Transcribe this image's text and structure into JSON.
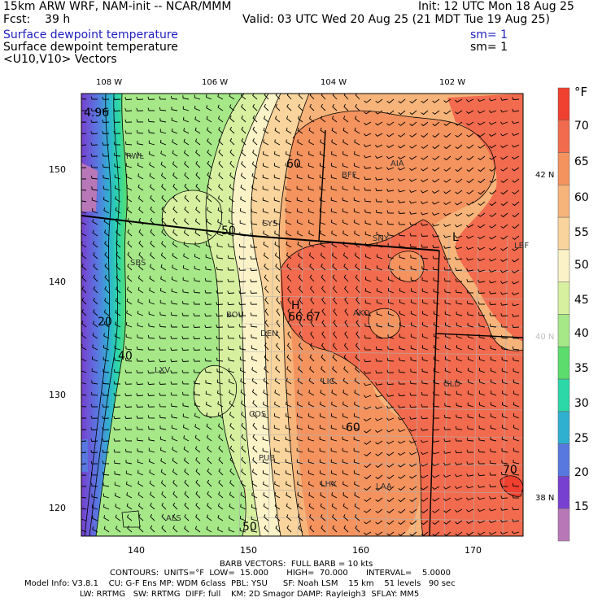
{
  "header": {
    "line1_left": "15km ARW WRF, NAM-init -- NCAR/MMM",
    "line1_right": "Init: 12 UTC Mon 18 Aug 25",
    "line2_left": "Fcst:    39 h",
    "line2_right": "Valid: 03 UTC Wed 20 Aug 25 (21 MDT Tue 19 Aug 25)",
    "line3_left": "Surface dewpoint temperature",
    "line3_right": "sm= 1",
    "line4_left": "Surface dewpoint temperature",
    "line4_right": "sm= 1",
    "line5_left": "<U10,V10> Vectors"
  },
  "map": {
    "top_lon_labels": [
      "108 W",
      "106 W",
      "104 W",
      "102 W"
    ],
    "bottom_x_labels": [
      "140",
      "150",
      "160",
      "170"
    ],
    "left_y_labels": [
      "150",
      "140",
      "130",
      "120"
    ],
    "right_lat_labels": [
      "42 N",
      "40 N",
      "38 N"
    ],
    "stations": [
      "RWL",
      "SBS",
      "BOU",
      "DEN",
      "AKO",
      "SNY",
      "BFF",
      "AIA",
      "CYS",
      "LBF",
      "LIC",
      "GLD",
      "COS",
      "PUB",
      "LHX",
      "LAA",
      "ALS",
      "LXV"
    ],
    "contour_labels": [
      "60",
      "50",
      "20",
      "40",
      "60",
      "50",
      "70",
      "4.96"
    ],
    "max_label": "66.67",
    "high_marker": "H",
    "low_marker": "L"
  },
  "colorbar": {
    "unit": "°F",
    "labels": [
      "70",
      "65",
      "60",
      "55",
      "50",
      "45",
      "40",
      "35",
      "30",
      "25",
      "20",
      "15"
    ],
    "colors": [
      "#f04030",
      "#f26b4e",
      "#f4935e",
      "#f6b47a",
      "#f9d49c",
      "#fbf2c8",
      "#d7f0a0",
      "#a6e888",
      "#5cdc6c",
      "#2cd8a8",
      "#30b0d0",
      "#5878e0",
      "#7840d0",
      "#b878b8"
    ]
  },
  "footer": {
    "line1": "BARB VECTORS:  FULL BARB = 10 kts",
    "line2": "CONTOURS:  UNITS=°F  LOW=  15.000       HIGH=  70.000       INTERVAL=    5.0000",
    "line3": "Model Info: V3.8.1    CU: G-F Ens MP: WDM 6class  PBL: YSU      SF: Noah LSM    15 km    51 levels   90 sec",
    "line4": "LW: RRTMG   SW: RRTMG  DIFF: full    KM: 2D Smagor DAMP: Rayleigh3  SFLAY: MM5"
  }
}
